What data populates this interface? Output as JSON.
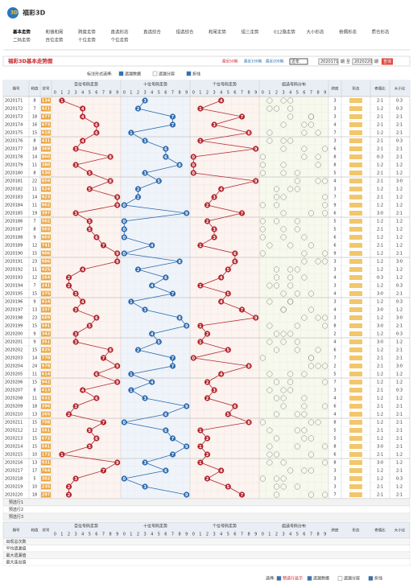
{
  "header": {
    "logo": "福彩3D",
    "nav": [
      "基本走势",
      "和值和尾",
      "跨度走势",
      "直选形态",
      "直选综合",
      "组选综合",
      "和尾走势",
      "组三走势",
      "012路走势",
      "大小形态",
      "奇偶形态",
      "质合形态",
      "二码走势",
      "百位走势",
      "十位走势",
      "个位走势"
    ]
  },
  "toolbar": {
    "title": "福彩3D基本走势图",
    "ranges": [
      "最近50期",
      "最近100期",
      "最近200期"
    ],
    "select": "近年",
    "from": "2020171",
    "to_label": "至",
    "to": "2020220",
    "period_unit": "期",
    "button": "查询"
  },
  "options": {
    "label": "标注形式选择:",
    "items": [
      "遗漏数据",
      "遗漏分层",
      "折线"
    ]
  },
  "chart_data": {
    "type": "trend-table",
    "headers": {
      "period": "期号",
      "sum": "和值",
      "number": "奖号",
      "zones": [
        "百位号码走势",
        "十位号码走势",
        "个位号码走势",
        "组选号码分布"
      ],
      "span": "跨度",
      "shape": "形态",
      "odd_even": "奇偶比",
      "big_small": "大小比"
    },
    "digit_labels": [
      "0",
      "1",
      "2",
      "3",
      "4",
      "5",
      "6",
      "7",
      "8",
      "9"
    ],
    "colors": [
      "#b3262e",
      "#2c6aad",
      "#b3262e"
    ],
    "rows": [
      {
        "period": "2020171",
        "sum": 8,
        "number": "134",
        "digits": [
          1,
          3,
          4
        ],
        "span": 3,
        "odd_even": "2:1",
        "big_small": "0:3"
      },
      {
        "period": "2020172",
        "sum": 7,
        "number": "421",
        "digits": [
          4,
          2,
          1
        ],
        "span": 3,
        "odd_even": "1:2",
        "big_small": "0:3"
      },
      {
        "period": "2020173",
        "sum": 18,
        "number": "477",
        "digits": [
          4,
          7,
          7
        ],
        "span": 3,
        "odd_even": "2:1",
        "big_small": "2:1"
      },
      {
        "period": "2020174",
        "sum": 16,
        "number": "673",
        "digits": [
          6,
          7,
          3
        ],
        "span": 4,
        "odd_even": "2:1",
        "big_small": "2:1"
      },
      {
        "period": "2020175",
        "sum": 15,
        "number": "618",
        "digits": [
          6,
          1,
          8
        ],
        "span": 7,
        "odd_even": "1:2",
        "big_small": "2:1"
      },
      {
        "period": "2020176",
        "sum": 8,
        "number": "431",
        "digits": [
          4,
          3,
          1
        ],
        "span": 3,
        "odd_even": "2:1",
        "big_small": "0:3"
      },
      {
        "period": "2020177",
        "sum": 18,
        "number": "369",
        "digits": [
          3,
          6,
          9
        ],
        "span": 6,
        "odd_even": "2:1",
        "big_small": "2:1"
      },
      {
        "period": "2020178",
        "sum": 14,
        "number": "860",
        "digits": [
          8,
          6,
          0
        ],
        "span": 8,
        "odd_even": "0:3",
        "big_small": "2:1"
      },
      {
        "period": "2020179",
        "sum": 11,
        "number": "380",
        "digits": [
          3,
          8,
          0
        ],
        "span": 8,
        "odd_even": "1:2",
        "big_small": "1:2"
      },
      {
        "period": "2020180",
        "sum": 8,
        "number": "530",
        "digits": [
          5,
          3,
          0
        ],
        "span": 5,
        "odd_even": "2:1",
        "big_small": "1:2"
      },
      {
        "period": "2020181",
        "sum": 22,
        "number": "859",
        "digits": [
          8,
          5,
          9
        ],
        "span": 4,
        "odd_even": "2:1",
        "big_small": "3:0"
      },
      {
        "period": "2020182",
        "sum": 11,
        "number": "524",
        "digits": [
          5,
          2,
          4
        ],
        "span": 3,
        "odd_even": "1:2",
        "big_small": "1:2"
      },
      {
        "period": "2020183",
        "sum": 14,
        "number": "923",
        "digits": [
          9,
          2,
          3
        ],
        "span": 7,
        "odd_even": "2:1",
        "big_small": "1:2"
      },
      {
        "period": "2020184",
        "sum": 11,
        "number": "902",
        "digits": [
          9,
          0,
          2
        ],
        "span": 9,
        "odd_even": "1:2",
        "big_small": "1:2"
      },
      {
        "period": "2020185",
        "sum": 19,
        "number": "397",
        "digits": [
          3,
          9,
          7
        ],
        "span": 6,
        "odd_even": "3:0",
        "big_small": "2:1"
      },
      {
        "period": "2020186",
        "sum": 7,
        "number": "502",
        "digits": [
          5,
          0,
          2
        ],
        "span": 5,
        "odd_even": "1:2",
        "big_small": "1:2"
      },
      {
        "period": "2020187",
        "sum": 8,
        "number": "503",
        "digits": [
          5,
          0,
          3
        ],
        "span": 5,
        "odd_even": "2:1",
        "big_small": "1:2"
      },
      {
        "period": "2020188",
        "sum": 9,
        "number": "603",
        "digits": [
          6,
          0,
          3
        ],
        "span": 6,
        "odd_even": "1:2",
        "big_small": "1:2"
      },
      {
        "period": "2020189",
        "sum": 12,
        "number": "741",
        "digits": [
          7,
          4,
          1
        ],
        "span": 6,
        "odd_even": "2:1",
        "big_small": "1:2"
      },
      {
        "period": "2020190",
        "sum": 15,
        "number": "906",
        "digits": [
          9,
          0,
          6
        ],
        "span": 9,
        "odd_even": "1:2",
        "big_small": "2:1"
      },
      {
        "period": "2020191",
        "sum": 23,
        "number": "986",
        "digits": [
          9,
          8,
          6
        ],
        "span": 3,
        "odd_even": "1:2",
        "big_small": "3:0"
      },
      {
        "period": "2020192",
        "sum": 11,
        "number": "425",
        "digits": [
          4,
          2,
          5
        ],
        "span": 3,
        "odd_even": "1:2",
        "big_small": "1:2"
      },
      {
        "period": "2020193",
        "sum": 12,
        "number": "264",
        "digits": [
          2,
          6,
          4
        ],
        "span": 4,
        "odd_even": "0:3",
        "big_small": "1:2"
      },
      {
        "period": "2020194",
        "sum": 7,
        "number": "241",
        "digits": [
          2,
          4,
          1
        ],
        "span": 3,
        "odd_even": "1:2",
        "big_small": "0:3"
      },
      {
        "period": "2020195",
        "sum": 15,
        "number": "375",
        "digits": [
          3,
          7,
          5
        ],
        "span": 4,
        "odd_even": "3:0",
        "big_small": "2:1"
      },
      {
        "period": "2020196",
        "sum": 9,
        "number": "414",
        "digits": [
          4,
          1,
          4
        ],
        "span": 3,
        "odd_even": "1:2",
        "big_small": "0:3"
      },
      {
        "period": "2020197",
        "sum": 13,
        "number": "337",
        "digits": [
          3,
          3,
          7
        ],
        "span": 4,
        "odd_even": "3:0",
        "big_small": "1:2"
      },
      {
        "period": "2020198",
        "sum": 23,
        "number": "689",
        "digits": [
          6,
          8,
          9
        ],
        "span": 3,
        "odd_even": "1:2",
        "big_small": "3:0"
      },
      {
        "period": "2020199",
        "sum": 15,
        "number": "591",
        "digits": [
          5,
          9,
          1
        ],
        "span": 8,
        "odd_even": "3:0",
        "big_small": "2:1"
      },
      {
        "period": "2020200",
        "sum": 9,
        "number": "342",
        "digits": [
          3,
          4,
          2
        ],
        "span": 2,
        "odd_even": "1:2",
        "big_small": "0:3"
      },
      {
        "period": "2020201",
        "sum": 9,
        "number": "351",
        "digits": [
          3,
          5,
          1
        ],
        "span": 4,
        "odd_even": "3:0",
        "big_small": "1:2"
      },
      {
        "period": "2020202",
        "sum": 15,
        "number": "825",
        "digits": [
          8,
          2,
          5
        ],
        "span": 6,
        "odd_even": "1:2",
        "big_small": "2:1"
      },
      {
        "period": "2020203",
        "sum": 14,
        "number": "770",
        "digits": [
          7,
          7,
          0
        ],
        "span": 7,
        "odd_even": "2:1",
        "big_small": "2:1"
      },
      {
        "period": "2020204",
        "sum": 24,
        "number": "978",
        "digits": [
          9,
          7,
          8
        ],
        "span": 2,
        "odd_even": "2:1",
        "big_small": "3:0"
      },
      {
        "period": "2020205",
        "sum": 11,
        "number": "614",
        "digits": [
          6,
          1,
          4
        ],
        "span": 5,
        "odd_even": "1:2",
        "big_small": "1:2"
      },
      {
        "period": "2020206",
        "sum": 15,
        "number": "942",
        "digits": [
          9,
          4,
          2
        ],
        "span": 7,
        "odd_even": "1:2",
        "big_small": "1:2"
      },
      {
        "period": "2020207",
        "sum": 8,
        "number": "413",
        "digits": [
          4,
          1,
          3
        ],
        "span": 3,
        "odd_even": "2:1",
        "big_small": "0:3"
      },
      {
        "period": "2020208",
        "sum": 11,
        "number": "632",
        "digits": [
          6,
          3,
          2
        ],
        "span": 4,
        "odd_even": "1:2",
        "big_small": "1:2"
      },
      {
        "period": "2020209",
        "sum": 18,
        "number": "396",
        "digits": [
          3,
          9,
          6
        ],
        "span": 6,
        "odd_even": "2:1",
        "big_small": "2:1"
      },
      {
        "period": "2020210",
        "sum": 13,
        "number": "265",
        "digits": [
          2,
          6,
          5
        ],
        "span": 4,
        "odd_even": "1:2",
        "big_small": "2:1"
      },
      {
        "period": "2020211",
        "sum": 15,
        "number": "708",
        "digits": [
          7,
          0,
          8
        ],
        "span": 8,
        "odd_even": "1:2",
        "big_small": "2:1"
      },
      {
        "period": "2020212",
        "sum": 12,
        "number": "561",
        "digits": [
          5,
          6,
          1
        ],
        "span": 5,
        "odd_even": "2:1",
        "big_small": "2:1"
      },
      {
        "period": "2020213",
        "sum": 15,
        "number": "672",
        "digits": [
          6,
          7,
          2
        ],
        "span": 5,
        "odd_even": "1:2",
        "big_small": "2:1"
      },
      {
        "period": "2020214",
        "sum": 15,
        "number": "591",
        "digits": [
          5,
          9,
          1
        ],
        "span": 8,
        "odd_even": "3:0",
        "big_small": "2:1"
      },
      {
        "period": "2020215",
        "sum": 10,
        "number": "172",
        "digits": [
          1,
          7,
          2
        ],
        "span": 6,
        "odd_even": "2:1",
        "big_small": "1:2"
      },
      {
        "period": "2020216",
        "sum": 13,
        "number": "931",
        "digits": [
          9,
          3,
          1
        ],
        "span": 8,
        "odd_even": "3:0",
        "big_small": "1:2"
      },
      {
        "period": "2020217",
        "sum": 17,
        "number": "764",
        "digits": [
          7,
          6,
          4
        ],
        "span": 3,
        "odd_even": "1:2",
        "big_small": "2:1"
      },
      {
        "period": "2020218",
        "sum": 5,
        "number": "302",
        "digits": [
          3,
          0,
          2
        ],
        "span": 3,
        "odd_even": "1:2",
        "big_small": "0:3"
      },
      {
        "period": "2020219",
        "sum": 10,
        "number": "235",
        "digits": [
          2,
          3,
          5
        ],
        "span": 3,
        "odd_even": "2:1",
        "big_small": "1:2"
      },
      {
        "period": "2020220",
        "sum": 18,
        "number": "297",
        "digits": [
          2,
          9,
          7
        ],
        "span": 7,
        "odd_even": "2:1",
        "big_small": "2:1"
      }
    ],
    "preselect_rows": [
      "预选行1",
      "预选行2",
      "预选行3"
    ],
    "stat_rows": [
      "出现总次数",
      "平均遗漏值",
      "最大遗漏值",
      "最大连出值"
    ]
  },
  "footer": {
    "label": "选择:",
    "items": [
      "预选行显示",
      "遗漏数据",
      "遗漏分层",
      "折线"
    ]
  }
}
